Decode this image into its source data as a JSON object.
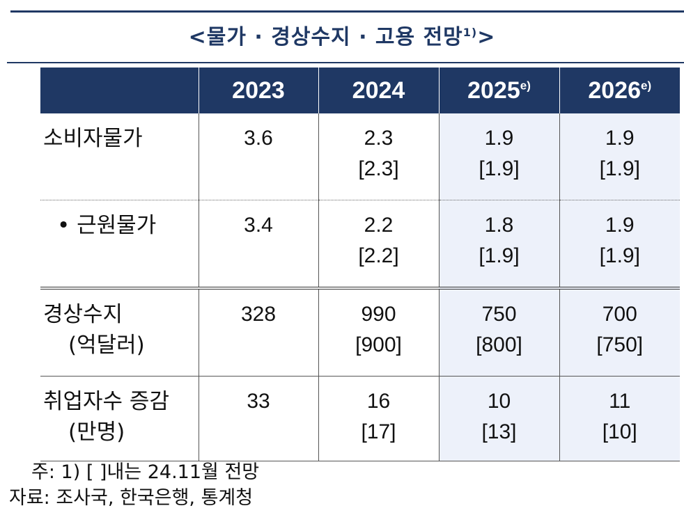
{
  "title": {
    "text": "<물가 · 경상수지 · 고용  전망",
    "sup": "1)",
    "close": ">"
  },
  "header": {
    "years": [
      {
        "label": "2023",
        "sup": ""
      },
      {
        "label": "2024",
        "sup": ""
      },
      {
        "label": "2025",
        "sup": "e)"
      },
      {
        "label": "2026",
        "sup": "e)"
      }
    ]
  },
  "rows": [
    {
      "label": "소비자물가",
      "label_sub": "",
      "cells": [
        {
          "value": "3.6",
          "prev": ""
        },
        {
          "value": "2.3",
          "prev": "[2.3]"
        },
        {
          "value": "1.9",
          "prev": "[1.9]"
        },
        {
          "value": "1.9",
          "prev": "[1.9]"
        }
      ]
    },
    {
      "label": "• 근원물가",
      "label_sub": "",
      "cells": [
        {
          "value": "3.4",
          "prev": ""
        },
        {
          "value": "2.2",
          "prev": "[2.2]"
        },
        {
          "value": "1.8",
          "prev": "[1.9]"
        },
        {
          "value": "1.9",
          "prev": "[1.9]"
        }
      ]
    },
    {
      "label": "경상수지",
      "label_sub": "(억달러)",
      "cells": [
        {
          "value": "328",
          "prev": ""
        },
        {
          "value": "990",
          "prev": "[900]"
        },
        {
          "value": "750",
          "prev": "[800]"
        },
        {
          "value": "700",
          "prev": "[750]"
        }
      ]
    },
    {
      "label": "취업자수 증감",
      "label_sub": "(만명)",
      "cells": [
        {
          "value": "33",
          "prev": ""
        },
        {
          "value": "16",
          "prev": "[17]"
        },
        {
          "value": "10",
          "prev": "[13]"
        },
        {
          "value": "11",
          "prev": "[10]"
        }
      ]
    }
  ],
  "note": "주:  1)  [  ]내는  24.11월  전망",
  "source": "자료:  조사국,  한국은행,  통계청",
  "colors": {
    "header_bg": "#1f3864",
    "forecast_bg": "#edf1fa"
  }
}
